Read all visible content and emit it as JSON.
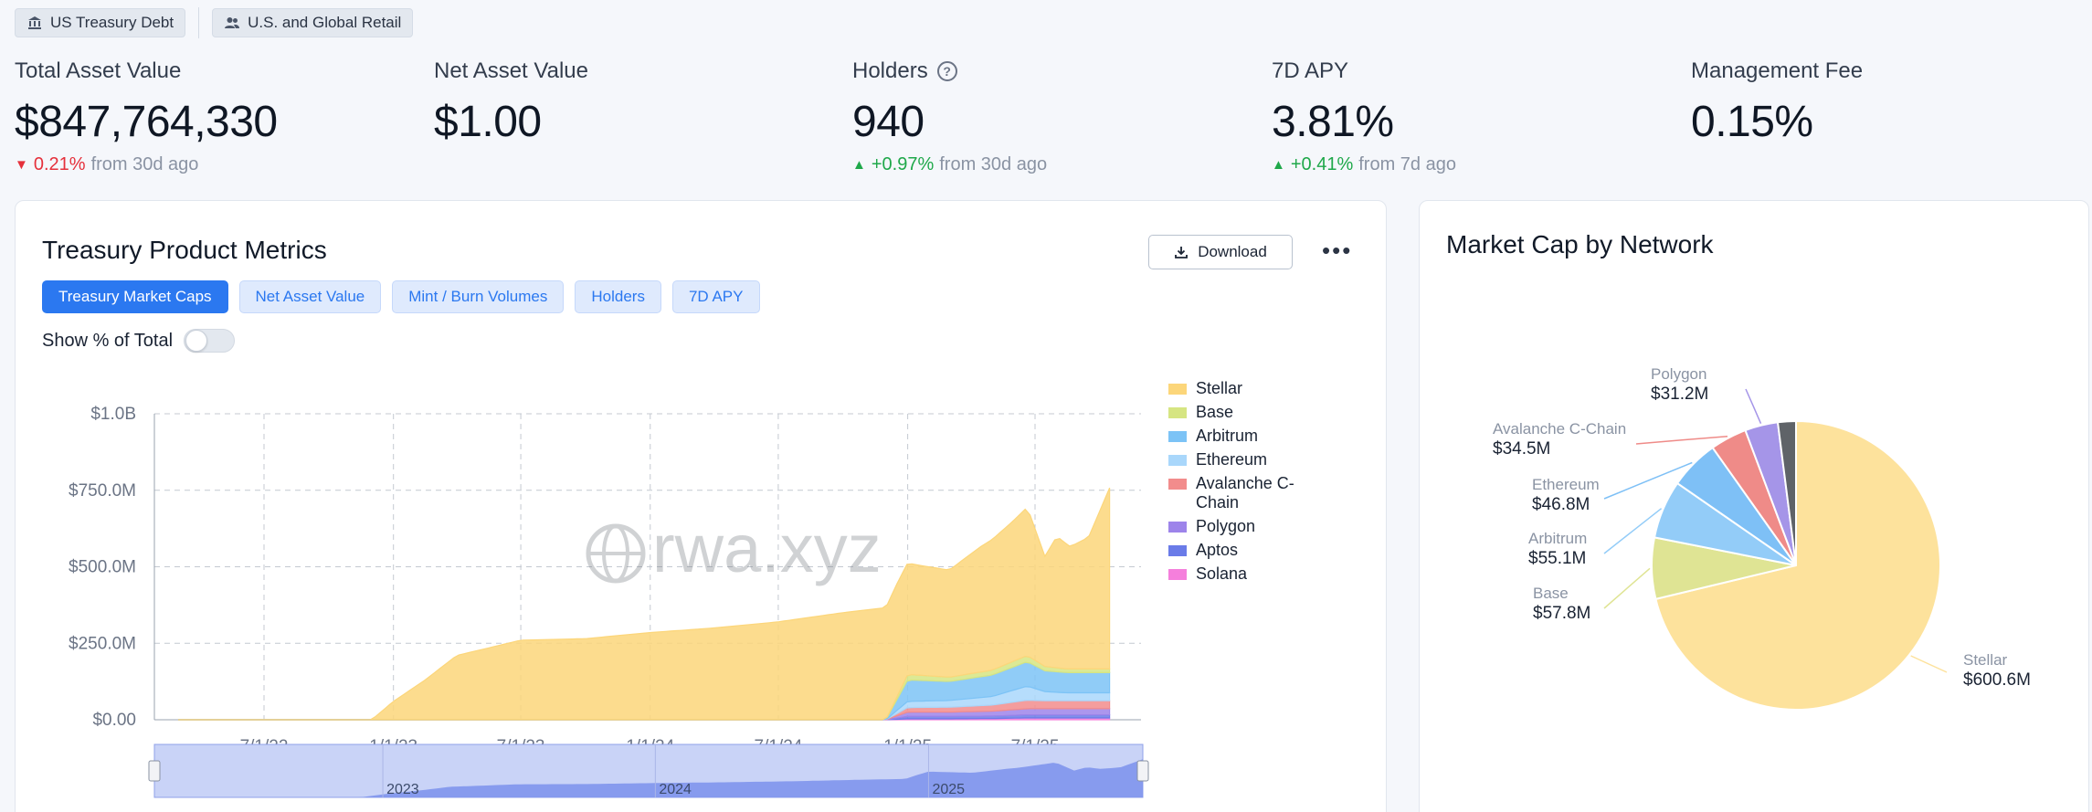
{
  "tags": [
    {
      "label": "US Treasury Debt",
      "icon": "bank-icon"
    },
    {
      "label": "U.S. and Global Retail",
      "icon": "users-icon"
    }
  ],
  "stats": [
    {
      "label": "Total Asset Value",
      "value": "$847,764,330",
      "change": "0.21%",
      "direction": "down",
      "period": "from 30d ago"
    },
    {
      "label": "Net Asset Value",
      "value": "$1.00",
      "change": "",
      "direction": "",
      "period": ""
    },
    {
      "label": "Holders",
      "value": "940",
      "change": "+0.97%",
      "direction": "up",
      "period": "from 30d ago",
      "help_icon": "question-circle-icon"
    },
    {
      "label": "7D APY",
      "value": "3.81%",
      "change": "+0.41%",
      "direction": "up",
      "period": "from 7d ago"
    },
    {
      "label": "Management Fee",
      "value": "0.15%",
      "change": "",
      "direction": "",
      "period": ""
    }
  ],
  "metrics_card": {
    "title": "Treasury Product Metrics",
    "download_label": "Download",
    "more_icon": "more-horizontal-icon",
    "tabs": [
      "Treasury Market Caps",
      "Net Asset Value",
      "Mint / Burn Volumes",
      "Holders",
      "7D APY"
    ],
    "active_tab": "Treasury Market Caps",
    "toggle_label": "Show % of Total",
    "toggle_on": false,
    "watermark": "rwa.xyz"
  },
  "network_card": {
    "title": "Market Cap by Network"
  },
  "chart_data": [
    {
      "type": "area",
      "stacked": true,
      "title": "",
      "xlabel": "",
      "ylabel": "",
      "y_ticks": [
        "$0.00",
        "$250.0M",
        "$500.0M",
        "$750.0M",
        "$1.0B"
      ],
      "ylim": [
        0,
        1000
      ],
      "x_ticks": [
        "7/1/22",
        "1/1/23",
        "7/1/23",
        "1/1/24",
        "7/1/24",
        "1/1/25",
        "7/1/25"
      ],
      "grid": true,
      "legend_position": "right",
      "navigator_years": [
        "2023",
        "2024",
        "2025"
      ],
      "series": [
        {
          "name": "Stellar",
          "color": "#fcd67a",
          "x": [
            "3/1/22",
            "12/1/22",
            "1/1/23",
            "2/15/23",
            "4/1/23",
            "7/1/23",
            "10/1/23",
            "1/1/24",
            "4/1/24",
            "7/1/24",
            "10/1/24",
            "12/15/24",
            "1/15/25",
            "3/1/25",
            "4/15/25",
            "6/1/25",
            "6/20/25",
            "7/15/25",
            "8/1/25",
            "8/20/25",
            "9/15/25",
            "10/15/25"
          ],
          "values": [
            0,
            0,
            60,
            130,
            210,
            260,
            265,
            285,
            300,
            320,
            350,
            370,
            360,
            350,
            410,
            460,
            485,
            360,
            430,
            400,
            430,
            592
          ]
        },
        {
          "name": "Base",
          "color": "#d6e582",
          "x": [
            "12/1/24",
            "1/1/25",
            "3/1/25",
            "5/1/25",
            "6/20/25",
            "7/15/25",
            "8/15/25",
            "10/15/25"
          ],
          "values": [
            0,
            18,
            14,
            16,
            20,
            14,
            12,
            12
          ]
        },
        {
          "name": "Arbitrum",
          "color": "#7cc3f6",
          "x": [
            "12/1/24",
            "1/1/25",
            "3/1/25",
            "5/1/25",
            "6/20/25",
            "7/15/25",
            "8/15/25",
            "10/15/25"
          ],
          "values": [
            0,
            70,
            62,
            70,
            80,
            68,
            66,
            66
          ]
        },
        {
          "name": "Ethereum",
          "color": "#a9d7fb",
          "x": [
            "12/1/24",
            "1/1/25",
            "3/1/25",
            "5/1/25",
            "6/20/25",
            "7/15/25",
            "8/15/25",
            "10/15/25"
          ],
          "values": [
            0,
            20,
            22,
            28,
            46,
            30,
            26,
            26
          ]
        },
        {
          "name": "Avalanche C-Chain",
          "color": "#f28c8c",
          "x": [
            "12/1/24",
            "1/1/25",
            "3/1/25",
            "5/1/25",
            "6/20/25",
            "7/15/25",
            "8/15/25",
            "10/15/25"
          ],
          "values": [
            0,
            15,
            16,
            20,
            28,
            26,
            26,
            26
          ]
        },
        {
          "name": "Polygon",
          "color": "#9d84ea",
          "x": [
            "12/1/24",
            "1/1/25",
            "3/1/25",
            "5/1/25",
            "6/20/25",
            "7/15/25",
            "8/15/25",
            "10/15/25"
          ],
          "values": [
            0,
            14,
            14,
            16,
            20,
            20,
            20,
            20
          ]
        },
        {
          "name": "Aptos",
          "color": "#6a7be8",
          "x": [
            "12/1/24",
            "1/1/25",
            "3/1/25",
            "5/1/25",
            "6/20/25",
            "7/15/25",
            "8/15/25",
            "10/15/25"
          ],
          "values": [
            0,
            8,
            8,
            8,
            10,
            10,
            10,
            10
          ]
        },
        {
          "name": "Solana",
          "color": "#f57fdc",
          "x": [
            "12/1/24",
            "1/1/25",
            "3/1/25",
            "5/1/25",
            "6/20/25",
            "7/15/25",
            "8/15/25",
            "10/15/25"
          ],
          "values": [
            0,
            3,
            3,
            4,
            6,
            6,
            6,
            6
          ]
        }
      ]
    },
    {
      "type": "pie",
      "title": "Market Cap by Network",
      "categories": [
        "Stellar",
        "Base",
        "Arbitrum",
        "Ethereum",
        "Avalanche C-Chain",
        "Polygon",
        ""
      ],
      "labels": [
        "$600.6M",
        "$57.8M",
        "$55.1M",
        "$46.8M",
        "$34.5M",
        "$31.2M",
        ""
      ],
      "values": [
        600.6,
        57.8,
        55.1,
        46.8,
        34.5,
        31.2,
        17
      ],
      "colors": [
        "#fde29c",
        "#dfe494",
        "#93ccf8",
        "#7ec0f6",
        "#ef8b88",
        "#a595e8",
        "#5f6368"
      ]
    }
  ]
}
